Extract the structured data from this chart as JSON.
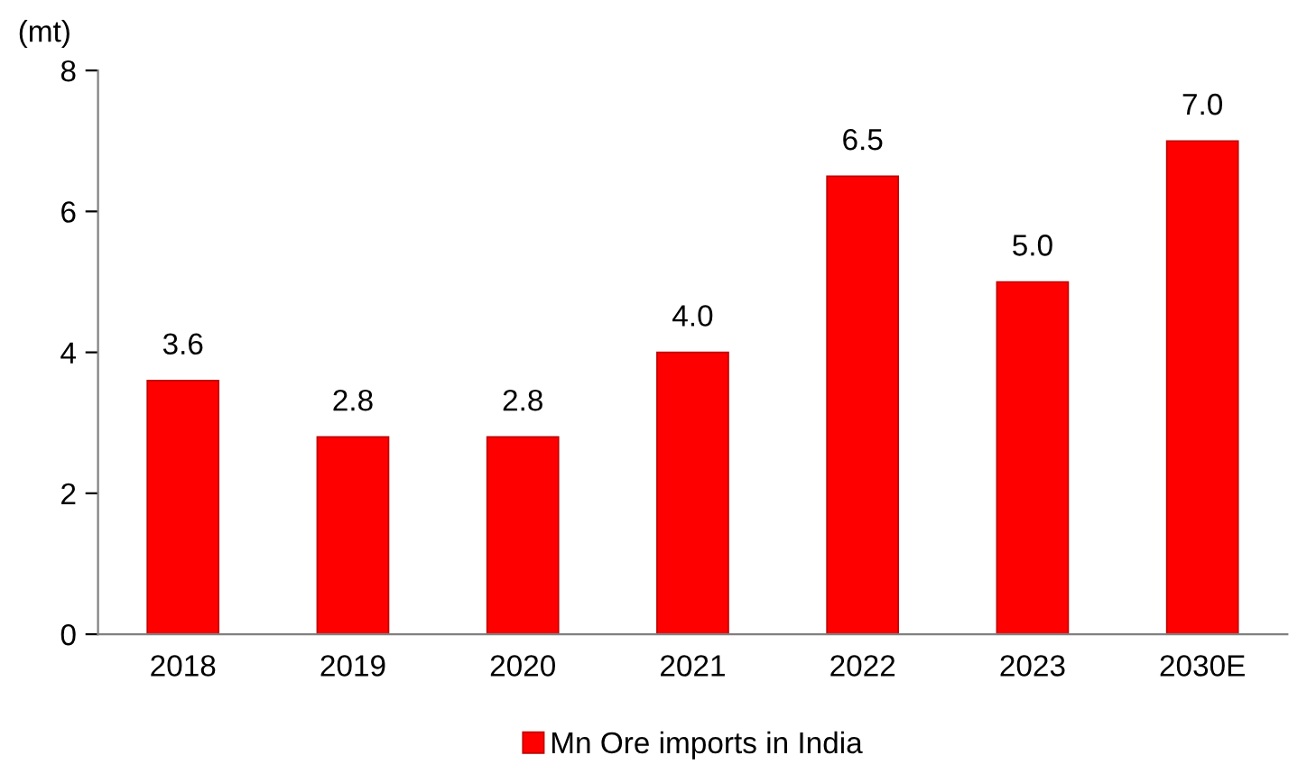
{
  "chart_data": {
    "type": "bar",
    "ylabel": "(mt)",
    "categories": [
      "2018",
      "2019",
      "2020",
      "2021",
      "2022",
      "2023",
      "2030E"
    ],
    "series": [
      {
        "name": "Mn Ore imports in India",
        "color": "#ff0000",
        "values": [
          3.6,
          2.8,
          2.8,
          4.0,
          6.5,
          5.0,
          7.0
        ],
        "value_labels": [
          "3.6",
          "2.8",
          "2.8",
          "4.0",
          "6.5",
          "5.0",
          "7.0"
        ]
      }
    ],
    "ylim": [
      0,
      8
    ],
    "yticks": [
      0,
      2,
      4,
      6,
      8
    ],
    "grid": false,
    "legend": "bottom"
  }
}
